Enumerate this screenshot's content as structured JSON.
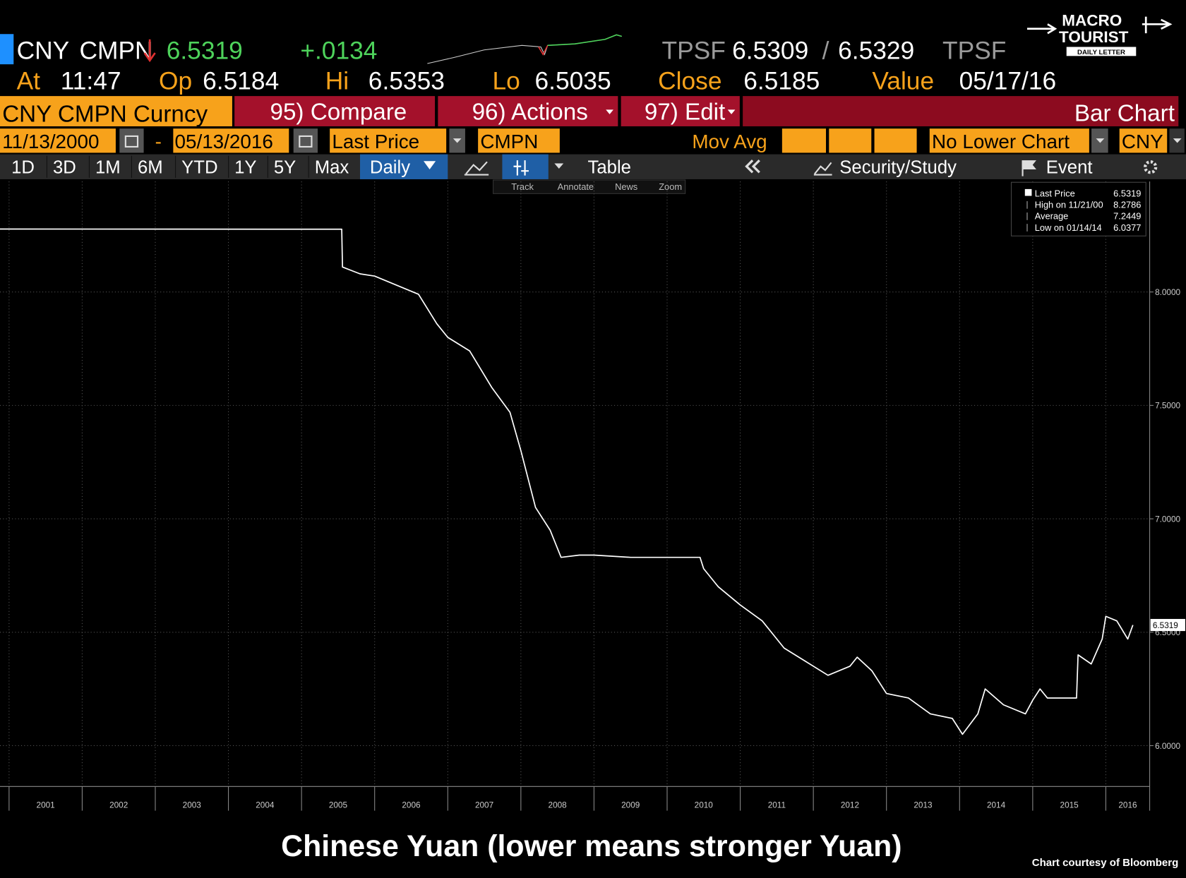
{
  "header": {
    "ticker": "CNY",
    "source": "CMPN",
    "last": "6.5319",
    "change": "+.0134",
    "bid_src": "TPSF",
    "bid": "6.5309",
    "sep": "/",
    "ask": "6.5329",
    "ask_src": "TPSF",
    "at_label": "At",
    "at": "11:47",
    "op_label": "Op",
    "op": "6.5184",
    "hi_label": "Hi",
    "hi": "6.5353",
    "lo_label": "Lo",
    "lo": "6.5035",
    "close_label": "Close",
    "close": "6.5185",
    "value_label": "Value",
    "value": "05/17/16"
  },
  "logo": {
    "line1": "MACRO",
    "line2": "TOURIST",
    "line3": "DAILY LETTER"
  },
  "menu": {
    "security": "CNY CMPN Curncy",
    "compare": "95) Compare",
    "actions": "96) Actions",
    "edit": "97) Edit",
    "chart_type": "Bar Chart"
  },
  "params": {
    "start": "11/13/2000",
    "dash": "-",
    "end": "05/13/2016",
    "field": "Last Price",
    "source": "CMPN",
    "mov_avg": "Mov Avg",
    "lower": "No Lower Chart",
    "currency": "CNY"
  },
  "toolbar": {
    "periods": [
      "1D",
      "3D",
      "1M",
      "6M",
      "YTD",
      "1Y",
      "5Y",
      "Max"
    ],
    "frequency": "Daily",
    "table": "Table",
    "security_study": "Security/Study",
    "event": "Event"
  },
  "tools": [
    "Track",
    "Annotate",
    "News",
    "Zoom"
  ],
  "chart_data": {
    "type": "line",
    "color": "#ffffff",
    "grid": true,
    "x": [
      2000.876,
      2005.55,
      2005.56,
      2005.8,
      2006.0,
      2006.3,
      2006.6,
      2006.85,
      2007.0,
      2007.3,
      2007.6,
      2007.85,
      2008.0,
      2008.2,
      2008.4,
      2008.55,
      2008.8,
      2009.0,
      2009.5,
      2010.0,
      2010.45,
      2010.5,
      2010.7,
      2011.0,
      2011.3,
      2011.6,
      2011.9,
      2012.2,
      2012.5,
      2012.6,
      2012.8,
      2013.0,
      2013.3,
      2013.6,
      2013.9,
      2014.04,
      2014.25,
      2014.35,
      2014.6,
      2014.9,
      2015.0,
      2015.1,
      2015.2,
      2015.6,
      2015.62,
      2015.8,
      2015.95,
      2016.0,
      2016.15,
      2016.3,
      2016.37
    ],
    "series": [
      {
        "name": "Last Price",
        "color": "#ffffff",
        "values": [
          8.2775,
          8.2765,
          8.11,
          8.08,
          8.07,
          8.03,
          7.99,
          7.86,
          7.8,
          7.74,
          7.58,
          7.47,
          7.3,
          7.05,
          6.95,
          6.83,
          6.84,
          6.84,
          6.83,
          6.83,
          6.83,
          6.78,
          6.7,
          6.62,
          6.55,
          6.43,
          6.37,
          6.31,
          6.35,
          6.39,
          6.33,
          6.23,
          6.21,
          6.14,
          6.12,
          6.05,
          6.14,
          6.25,
          6.18,
          6.14,
          6.2,
          6.25,
          6.21,
          6.21,
          6.4,
          6.36,
          6.47,
          6.57,
          6.55,
          6.47,
          6.5319
        ]
      }
    ],
    "xlim": [
      2000.876,
      2016.6
    ],
    "xticks": [
      2001,
      2002,
      2003,
      2004,
      2005,
      2006,
      2007,
      2008,
      2009,
      2010,
      2011,
      2012,
      2013,
      2014,
      2015,
      2016
    ],
    "ylim": [
      5.82,
      8.487
    ],
    "yticks": [
      {
        "value": 6,
        "label": "6.0000"
      },
      {
        "value": 6.5,
        "label": "6.5000"
      },
      {
        "value": 7,
        "label": "7.0000"
      },
      {
        "value": 7.5,
        "label": "7.5000"
      },
      {
        "value": 8,
        "label": "8.0000"
      }
    ],
    "last_price_tag": "6.5319",
    "legend": [
      {
        "label": "Last Price",
        "value": "6.5319"
      },
      {
        "label": "High on 11/21/00",
        "value": "8.2786"
      },
      {
        "label": "Average",
        "value": "7.2449"
      },
      {
        "label": "Low on 01/14/14",
        "value": "6.0377"
      }
    ]
  },
  "caption": "Chinese Yuan (lower means stronger Yuan)",
  "credit": "Chart courtesy of Bloomberg"
}
